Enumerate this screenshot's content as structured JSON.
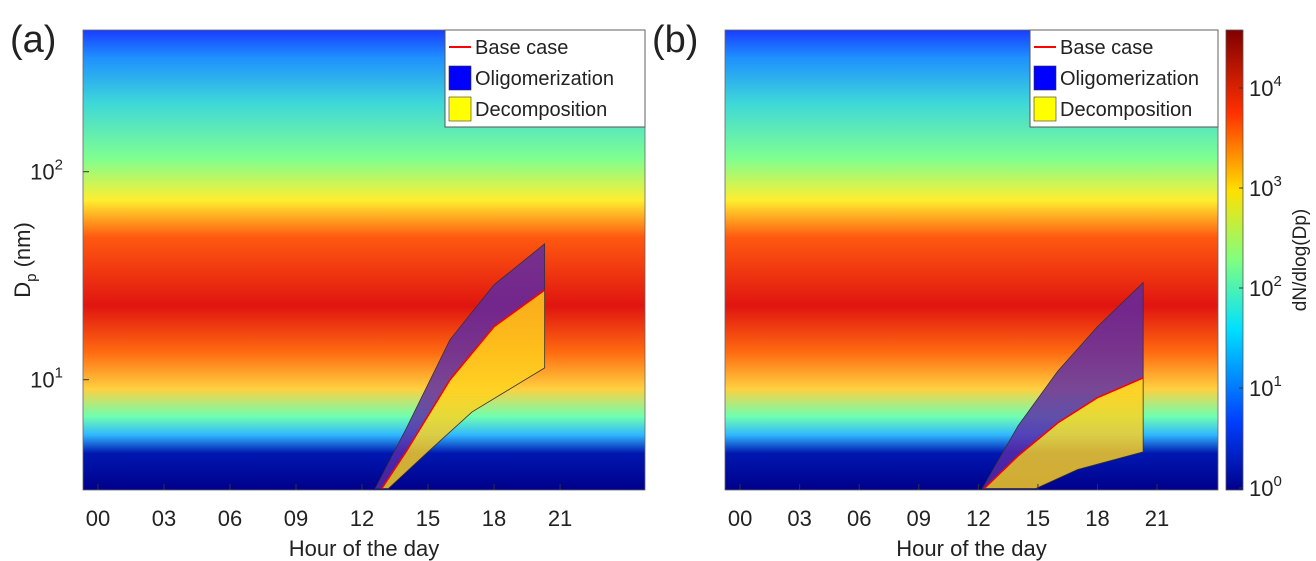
{
  "chart_data": [
    {
      "type": "heatmap",
      "panel_label": "(a)",
      "xlabel": "Hour of the day",
      "ylabel": {
        "main": "D",
        "sub": "p",
        "rest": " (nm)"
      },
      "xlim": [
        -0.68,
        24.86
      ],
      "ylim": [
        2.95,
        480
      ],
      "log_y": true,
      "legend": "upper right",
      "xticks": [
        {
          "value": 0,
          "label": "00"
        },
        {
          "value": 3,
          "label": "03"
        },
        {
          "value": 6,
          "label": "06"
        },
        {
          "value": 9,
          "label": "09"
        },
        {
          "value": 12,
          "label": "12"
        },
        {
          "value": 15,
          "label": "15"
        },
        {
          "value": 18,
          "label": "18"
        },
        {
          "value": 21,
          "label": "21"
        }
      ],
      "yticks": [
        {
          "value": 10,
          "label": "10",
          "exponent": "1"
        },
        {
          "value": 100,
          "label": "10",
          "exponent": "2"
        }
      ],
      "series": [
        {
          "name": "Base case",
          "kind": "line",
          "color": "#ff0000",
          "x": [
            12.9,
            14,
            16,
            18,
            20.3
          ],
          "values": [
            3,
            4.5,
            10,
            18,
            27
          ]
        },
        {
          "name": "Oligomerization",
          "kind": "band",
          "color": "#0000ff",
          "fill": "#5a2aa8",
          "x": [
            12.6,
            14,
            16,
            18,
            20.3
          ],
          "values": [
            3,
            5.8,
            15.6,
            28.6,
            45
          ],
          "x_lower": [
            12.9,
            14,
            16,
            18,
            20.3
          ],
          "lower": [
            3,
            4.5,
            10,
            18,
            27
          ]
        },
        {
          "name": "Decomposition",
          "kind": "band",
          "color": "#ffff00",
          "fill": "#ffd21e",
          "x": [
            12.9,
            14,
            16,
            18,
            20.3
          ],
          "values": [
            3,
            4.5,
            10,
            18,
            27
          ],
          "x_lower": [
            13.2,
            15,
            17,
            20.3
          ],
          "lower": [
            3,
            4.5,
            7,
            11.4
          ]
        }
      ]
    },
    {
      "type": "heatmap",
      "panel_label": "(b)",
      "xlabel": "Hour of the day",
      "xlim": [
        -0.76,
        24.07
      ],
      "ylim": [
        2.95,
        480
      ],
      "log_y": true,
      "legend": "upper right",
      "xticks": [
        {
          "value": 0,
          "label": "00"
        },
        {
          "value": 3,
          "label": "03"
        },
        {
          "value": 6,
          "label": "06"
        },
        {
          "value": 9,
          "label": "09"
        },
        {
          "value": 12,
          "label": "12"
        },
        {
          "value": 15,
          "label": "15"
        },
        {
          "value": 18,
          "label": "18"
        },
        {
          "value": 21,
          "label": "21"
        }
      ],
      "series": [
        {
          "name": "Base case",
          "kind": "line",
          "color": "#ff0000",
          "x": [
            12.3,
            14,
            16,
            18,
            20.3
          ],
          "values": [
            3,
            4.3,
            6.2,
            8.2,
            10.2
          ]
        },
        {
          "name": "Oligomerization",
          "kind": "band",
          "color": "#0000ff",
          "fill": "#5a2aa8",
          "x": [
            12.2,
            14,
            16,
            18,
            20.3
          ],
          "values": [
            3,
            6,
            11,
            18,
            29.3
          ],
          "x_lower": [
            12.3,
            14,
            16,
            18,
            20.3
          ],
          "lower": [
            3,
            4.3,
            6.2,
            8.2,
            10.2
          ]
        },
        {
          "name": "Decomposition",
          "kind": "band",
          "color": "#ffff00",
          "fill": "#ffd21e",
          "x": [
            12.3,
            14,
            16,
            18,
            20.3
          ],
          "values": [
            3,
            4.3,
            6.2,
            8.2,
            10.2
          ],
          "x_lower": [
            14.9,
            17,
            20.3
          ],
          "lower": [
            3,
            3.7,
            4.5
          ]
        }
      ],
      "colorbar": {
        "label": "dN/dlog(Dp)",
        "lim": [
          0.955,
          38000
        ],
        "log": true,
        "ticks": [
          {
            "value": 1,
            "label": "10",
            "exponent": "0"
          },
          {
            "value": 10,
            "label": "10",
            "exponent": "1"
          },
          {
            "value": 100,
            "label": "10",
            "exponent": "2"
          },
          {
            "value": 1000,
            "label": "10",
            "exponent": "3"
          },
          {
            "value": 10000,
            "label": "10",
            "exponent": "4"
          }
        ]
      }
    }
  ]
}
